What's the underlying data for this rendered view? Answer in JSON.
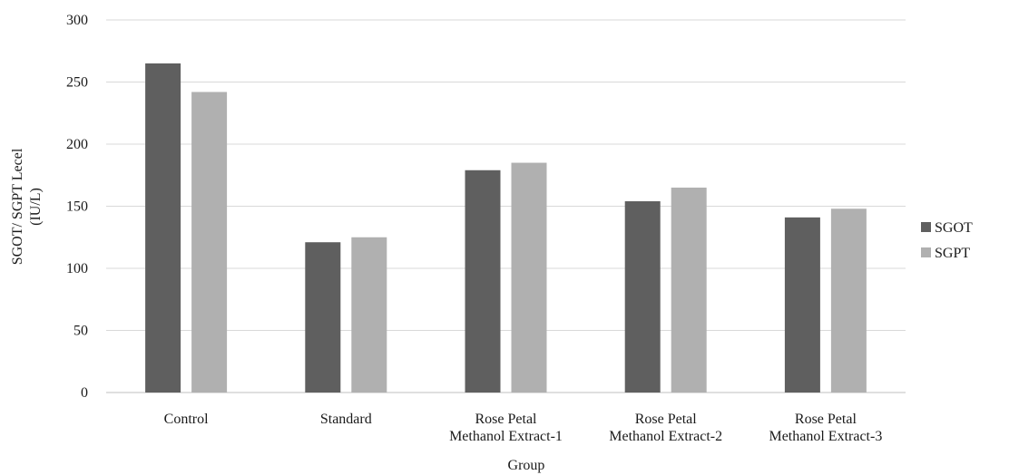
{
  "chart_data": {
    "type": "bar",
    "title": "",
    "xlabel": "Group",
    "ylabel_lines": [
      "SGOT/ SGPT Lecel",
      "(IU/L)"
    ],
    "categories": [
      [
        "Control"
      ],
      [
        "Standard"
      ],
      [
        "Rose Petal",
        "Methanol Extract-1"
      ],
      [
        "Rose Petal",
        "Methanol Extract-2"
      ],
      [
        "Rose Petal",
        "Methanol Extract-3"
      ]
    ],
    "series": [
      {
        "name": "SGOT",
        "color": "#5f5f5f",
        "values": [
          265,
          121,
          179,
          154,
          141
        ]
      },
      {
        "name": "SGPT",
        "color": "#b0b0b0",
        "values": [
          242,
          125,
          185,
          165,
          148
        ]
      }
    ],
    "ylim": [
      0,
      300
    ],
    "yticks": [
      "0",
      "50",
      "100",
      "150",
      "200",
      "250",
      "300"
    ],
    "grid": true,
    "legend_position": "right"
  }
}
